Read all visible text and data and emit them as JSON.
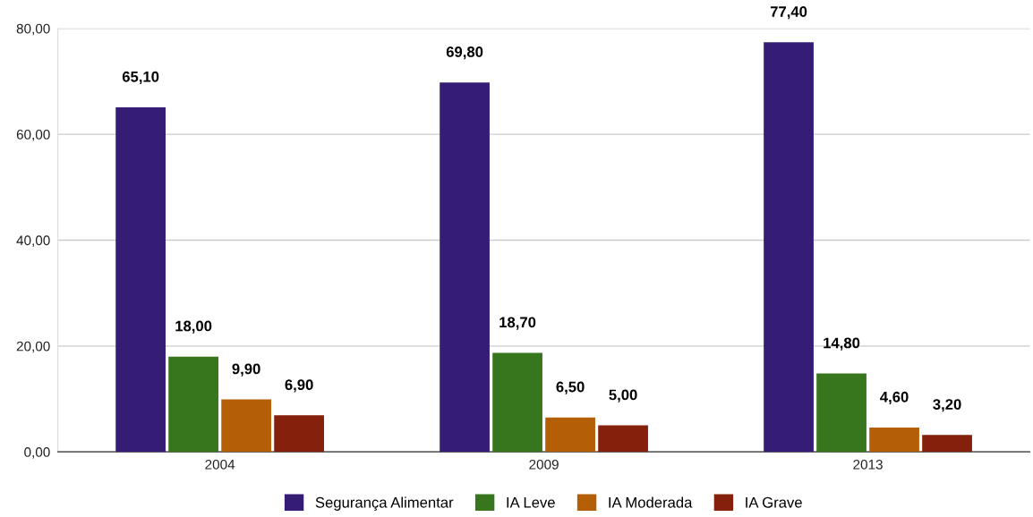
{
  "chart_data": {
    "type": "bar",
    "categories": [
      "2004",
      "2009",
      "2013"
    ],
    "series": [
      {
        "name": "Segurança Alimentar",
        "color": "#351c75",
        "values": [
          65.1,
          69.8,
          77.4
        ],
        "value_labels": [
          "65,10",
          "69,80",
          "77,40"
        ]
      },
      {
        "name": "IA Leve",
        "color": "#38761d",
        "values": [
          18.0,
          18.7,
          14.8
        ],
        "value_labels": [
          "18,00",
          "18,70",
          "14,80"
        ]
      },
      {
        "name": "IA Moderada",
        "color": "#b45f06",
        "values": [
          9.9,
          6.5,
          4.6
        ],
        "value_labels": [
          "9,90",
          "6,50",
          "4,60"
        ]
      },
      {
        "name": "IA Grave",
        "color": "#85200c",
        "values": [
          6.9,
          5.0,
          3.2
        ],
        "value_labels": [
          "6,90",
          "5,00",
          "3,20"
        ]
      }
    ],
    "ylim": [
      0,
      80
    ],
    "yticks": [
      {
        "value": 0,
        "label": "0,00"
      },
      {
        "value": 20,
        "label": "20,00"
      },
      {
        "value": 40,
        "label": "40,00"
      },
      {
        "value": 60,
        "label": "60,00"
      },
      {
        "value": 80,
        "label": "80,00"
      }
    ],
    "grid": "y",
    "legend": "bottom"
  }
}
